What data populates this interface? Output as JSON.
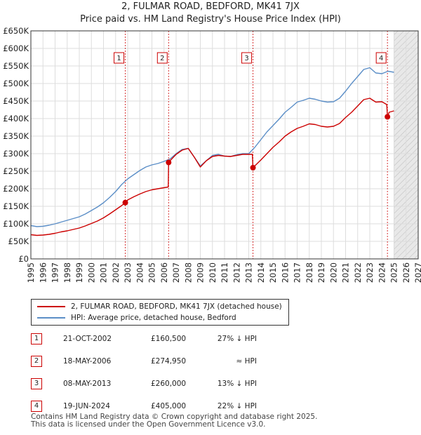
{
  "title_line1": "2, FULMAR ROAD, BEDFORD, MK41 7JX",
  "title_line2": "Price paid vs. HM Land Registry's House Price Index (HPI)",
  "legend": {
    "property": "2, FULMAR ROAD, BEDFORD, MK41 7JX (detached house)",
    "hpi": "HPI: Average price, detached house, Bedford"
  },
  "colors": {
    "property": "#cc0000",
    "hpi": "#5b8ec7",
    "grid": "#dddddd",
    "future": "#e8e8e8"
  },
  "sales": [
    {
      "num": "1",
      "date": "21-OCT-2002",
      "price": "£160,500",
      "delta": "27% ↓ HPI"
    },
    {
      "num": "2",
      "date": "18-MAY-2006",
      "price": "£274,950",
      "delta": "≈ HPI"
    },
    {
      "num": "3",
      "date": "08-MAY-2013",
      "price": "£260,000",
      "delta": "13% ↓ HPI"
    },
    {
      "num": "4",
      "date": "19-JUN-2024",
      "price": "£405,000",
      "delta": "22% ↓ HPI"
    }
  ],
  "footer_line1": "Contains HM Land Registry data © Crown copyright and database right 2025.",
  "footer_line2": "This data is licensed under the Open Government Licence v3.0.",
  "chart_data": {
    "type": "line",
    "title": "2, FULMAR ROAD, BEDFORD, MK41 7JX",
    "subtitle": "Price paid vs. HM Land Registry's House Price Index (HPI)",
    "xlabel": "",
    "ylabel": "",
    "xlim": [
      1995,
      2027
    ],
    "ylim": [
      0,
      650000
    ],
    "future_from": 2025.0,
    "y_ticks": [
      {
        "v": 0,
        "label": "£0"
      },
      {
        "v": 50000,
        "label": "£50K"
      },
      {
        "v": 100000,
        "label": "£100K"
      },
      {
        "v": 150000,
        "label": "£150K"
      },
      {
        "v": 200000,
        "label": "£200K"
      },
      {
        "v": 250000,
        "label": "£250K"
      },
      {
        "v": 300000,
        "label": "£300K"
      },
      {
        "v": 350000,
        "label": "£350K"
      },
      {
        "v": 400000,
        "label": "£400K"
      },
      {
        "v": 450000,
        "label": "£450K"
      },
      {
        "v": 500000,
        "label": "£500K"
      },
      {
        "v": 550000,
        "label": "£550K"
      },
      {
        "v": 600000,
        "label": "£600K"
      },
      {
        "v": 650000,
        "label": "£650K"
      }
    ],
    "x_ticks": [
      "1995",
      "1996",
      "1997",
      "1998",
      "1999",
      "2000",
      "2001",
      "2002",
      "2003",
      "2004",
      "2005",
      "2006",
      "2007",
      "2008",
      "2009",
      "2010",
      "2011",
      "2012",
      "2013",
      "2014",
      "2015",
      "2016",
      "2017",
      "2018",
      "2019",
      "2020",
      "2021",
      "2022",
      "2023",
      "2024",
      "2025",
      "2026",
      "2027"
    ],
    "series": [
      {
        "name": "HPI: Average price, detached house, Bedford",
        "x": [
          1995.0,
          1995.5,
          1996.0,
          1996.5,
          1997.0,
          1997.5,
          1998.0,
          1998.5,
          1999.0,
          1999.5,
          2000.0,
          2000.5,
          2001.0,
          2001.5,
          2002.0,
          2002.5,
          2003.0,
          2003.5,
          2004.0,
          2004.5,
          2005.0,
          2005.5,
          2006.0,
          2006.5,
          2007.0,
          2007.5,
          2008.0,
          2008.5,
          2009.0,
          2009.5,
          2010.0,
          2010.5,
          2011.0,
          2011.5,
          2012.0,
          2012.5,
          2013.0,
          2013.5,
          2014.0,
          2014.5,
          2015.0,
          2015.5,
          2016.0,
          2016.5,
          2017.0,
          2017.5,
          2018.0,
          2018.5,
          2019.0,
          2019.5,
          2020.0,
          2020.5,
          2021.0,
          2021.5,
          2022.0,
          2022.5,
          2023.0,
          2023.5,
          2024.0,
          2024.5,
          2025.0
        ],
        "values": [
          95000,
          92000,
          93000,
          96000,
          100000,
          105000,
          110000,
          115000,
          120000,
          128000,
          138000,
          148000,
          160000,
          175000,
          192000,
          212000,
          228000,
          240000,
          252000,
          262000,
          268000,
          272000,
          278000,
          285000,
          300000,
          312000,
          315000,
          290000,
          265000,
          280000,
          295000,
          298000,
          293000,
          292000,
          297000,
          300000,
          300000,
          318000,
          340000,
          362000,
          380000,
          398000,
          418000,
          432000,
          447000,
          452000,
          458000,
          455000,
          450000,
          447000,
          448000,
          458000,
          478000,
          500000,
          520000,
          540000,
          545000,
          530000,
          528000,
          535000,
          532000
        ]
      },
      {
        "name": "2, FULMAR ROAD, BEDFORD, MK41 7JX (detached house)",
        "x": [
          1995.0,
          1995.5,
          1996.0,
          1996.5,
          1997.0,
          1997.5,
          1998.0,
          1998.5,
          1999.0,
          1999.5,
          2000.0,
          2000.5,
          2001.0,
          2001.5,
          2002.0,
          2002.5,
          2002.8,
          2003.0,
          2003.5,
          2004.0,
          2004.5,
          2005.0,
          2005.5,
          2006.0,
          2006.35,
          2006.38,
          2006.5,
          2007.0,
          2007.5,
          2008.0,
          2008.5,
          2009.0,
          2009.5,
          2010.0,
          2010.5,
          2011.0,
          2011.5,
          2012.0,
          2012.5,
          2013.0,
          2013.3,
          2013.35,
          2013.5,
          2014.0,
          2014.5,
          2015.0,
          2015.5,
          2016.0,
          2016.5,
          2017.0,
          2017.5,
          2018.0,
          2018.5,
          2019.0,
          2019.5,
          2020.0,
          2020.5,
          2021.0,
          2021.5,
          2022.0,
          2022.5,
          2023.0,
          2023.5,
          2024.0,
          2024.4,
          2024.46,
          2024.6,
          2025.0
        ],
        "values": [
          69000,
          67000,
          68000,
          70000,
          73000,
          77000,
          80000,
          84000,
          88000,
          94000,
          101000,
          108000,
          117000,
          128000,
          140000,
          152000,
          160500,
          168000,
          177000,
          185000,
          192000,
          197000,
          200000,
          203000,
          205000,
          274950,
          280000,
          298000,
          310000,
          315000,
          290000,
          262000,
          280000,
          292000,
          295000,
          293000,
          292000,
          295000,
          298000,
          298000,
          298000,
          260000,
          265000,
          282000,
          300000,
          318000,
          333000,
          350000,
          362000,
          372000,
          378000,
          385000,
          383000,
          378000,
          376000,
          378000,
          386000,
          403000,
          418000,
          436000,
          454000,
          458000,
          447000,
          448000,
          440000,
          405000,
          418000,
          422000
        ]
      }
    ],
    "sales": [
      {
        "num": "1",
        "x": 2002.8,
        "value": 160500
      },
      {
        "num": "2",
        "x": 2006.38,
        "value": 274950
      },
      {
        "num": "3",
        "x": 2013.35,
        "value": 260000
      },
      {
        "num": "4",
        "x": 2024.46,
        "value": 405000
      }
    ]
  }
}
